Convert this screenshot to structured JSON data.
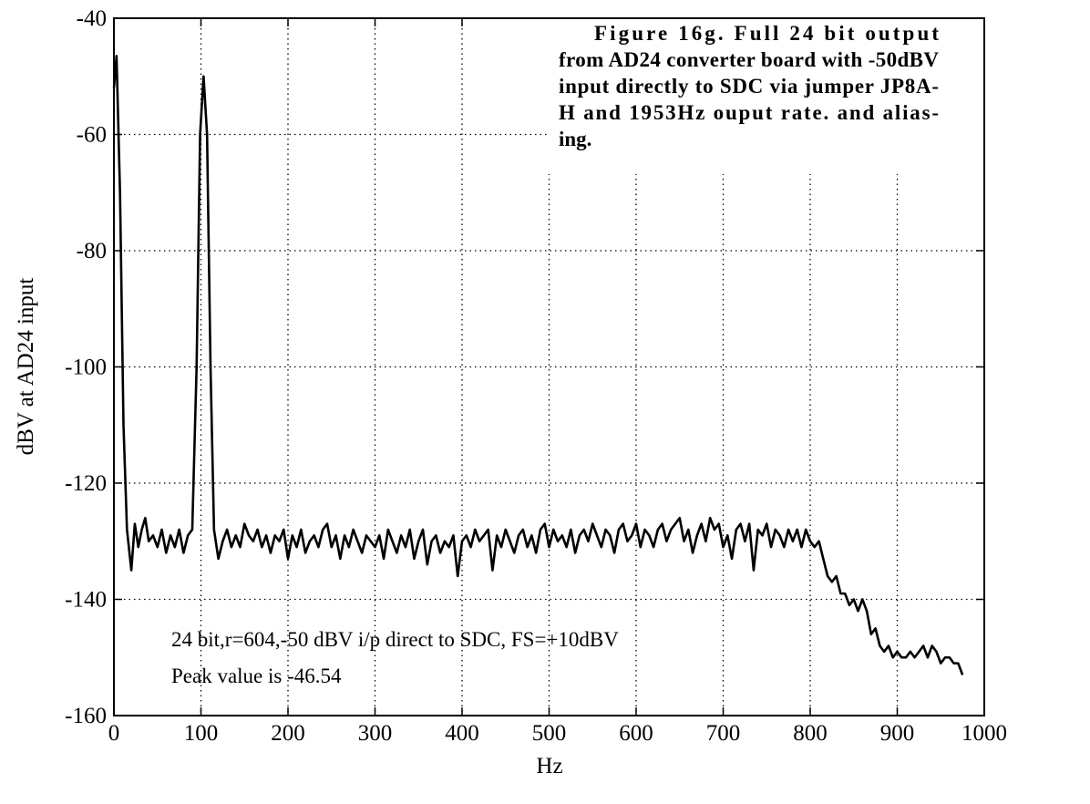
{
  "chart_data": {
    "type": "line",
    "xlabel": "Hz",
    "ylabel": "dBV at AD24 input",
    "caption": [
      "Figure 16g.    Full 24 bit output",
      "from AD24 converter board with -50dBV",
      "input directly to SDC via jumper JP8A-",
      "H and 1953Hz ouput rate. and alias-",
      "ing."
    ],
    "annotations": [
      "24 bit,r=604,-50 dBV i/p direct to SDC, FS=+10dBV",
      "Peak value is -46.54"
    ],
    "xlim": [
      0,
      1000
    ],
    "ylim": [
      -160,
      -40
    ],
    "xticks": [
      0,
      100,
      200,
      300,
      400,
      500,
      600,
      700,
      800,
      900,
      1000
    ],
    "yticks": [
      -160,
      -140,
      -120,
      -100,
      -80,
      -60,
      -40
    ],
    "grid": true,
    "color": "#000000",
    "x": [
      0,
      3,
      7,
      11,
      15,
      20,
      24,
      28,
      32,
      36,
      40,
      45,
      50,
      55,
      60,
      65,
      70,
      75,
      80,
      85,
      90,
      95,
      99,
      103,
      107,
      111,
      115,
      120,
      125,
      130,
      135,
      140,
      145,
      150,
      155,
      160,
      165,
      170,
      175,
      180,
      185,
      190,
      195,
      200,
      205,
      210,
      215,
      220,
      225,
      230,
      235,
      240,
      245,
      250,
      255,
      260,
      265,
      270,
      275,
      280,
      285,
      290,
      295,
      300,
      305,
      310,
      315,
      320,
      325,
      330,
      335,
      340,
      345,
      350,
      355,
      360,
      365,
      370,
      375,
      380,
      385,
      390,
      395,
      400,
      405,
      410,
      415,
      420,
      425,
      430,
      435,
      440,
      445,
      450,
      455,
      460,
      465,
      470,
      475,
      480,
      485,
      490,
      495,
      500,
      505,
      510,
      515,
      520,
      525,
      530,
      535,
      540,
      545,
      550,
      555,
      560,
      565,
      570,
      575,
      580,
      585,
      590,
      595,
      600,
      605,
      610,
      615,
      620,
      625,
      630,
      635,
      640,
      645,
      650,
      655,
      660,
      665,
      670,
      675,
      680,
      685,
      690,
      695,
      700,
      705,
      710,
      715,
      720,
      725,
      730,
      735,
      740,
      745,
      750,
      755,
      760,
      765,
      770,
      775,
      780,
      785,
      790,
      795,
      800,
      805,
      810,
      815,
      820,
      825,
      830,
      835,
      840,
      845,
      850,
      855,
      860,
      865,
      870,
      875,
      880,
      885,
      890,
      895,
      900,
      905,
      910,
      915,
      920,
      925,
      930,
      935,
      940,
      945,
      950,
      955,
      960,
      965,
      970,
      975
    ],
    "values": [
      -52,
      -46.5,
      -70,
      -110,
      -128,
      -135,
      -127,
      -131,
      -128,
      -126,
      -130,
      -129,
      -131,
      -128,
      -132,
      -129,
      -131,
      -128,
      -132,
      -129,
      -128,
      -100,
      -60,
      -50,
      -60,
      -100,
      -128,
      -133,
      -130,
      -128,
      -131,
      -129,
      -131,
      -127,
      -129,
      -130,
      -128,
      -131,
      -129,
      -132,
      -129,
      -130,
      -128,
      -133,
      -129,
      -131,
      -128,
      -132,
      -130,
      -129,
      -131,
      -128,
      -127,
      -131,
      -129,
      -133,
      -129,
      -131,
      -128,
      -130,
      -132,
      -129,
      -130,
      -131,
      -129,
      -133,
      -128,
      -130,
      -132,
      -129,
      -131,
      -128,
      -133,
      -130,
      -128,
      -134,
      -130,
      -129,
      -132,
      -130,
      -131,
      -129,
      -136,
      -130,
      -129,
      -131,
      -128,
      -130,
      -129,
      -128,
      -135,
      -129,
      -131,
      -128,
      -130,
      -132,
      -129,
      -128,
      -131,
      -129,
      -132,
      -128,
      -127,
      -131,
      -128,
      -130,
      -129,
      -131,
      -128,
      -132,
      -129,
      -128,
      -130,
      -127,
      -129,
      -131,
      -128,
      -129,
      -132,
      -128,
      -127,
      -130,
      -129,
      -127,
      -131,
      -128,
      -129,
      -131,
      -128,
      -127,
      -130,
      -128,
      -127,
      -126,
      -130,
      -128,
      -132,
      -129,
      -127,
      -130,
      -126,
      -128,
      -127,
      -131,
      -129,
      -133,
      -128,
      -127,
      -130,
      -127,
      -135,
      -128,
      -129,
      -127,
      -131,
      -128,
      -129,
      -131,
      -128,
      -130,
      -128,
      -131,
      -128,
      -130,
      -131,
      -130,
      -133,
      -136,
      -137,
      -136,
      -139,
      -139,
      -141,
      -140,
      -142,
      -140,
      -142,
      -146,
      -145,
      -148,
      -149,
      -148,
      -150,
      -149,
      -150,
      -150,
      -149,
      -150,
      -149,
      -148,
      -150,
      -148,
      -149,
      -151,
      -150,
      -150,
      -151,
      -151,
      -153
    ]
  }
}
